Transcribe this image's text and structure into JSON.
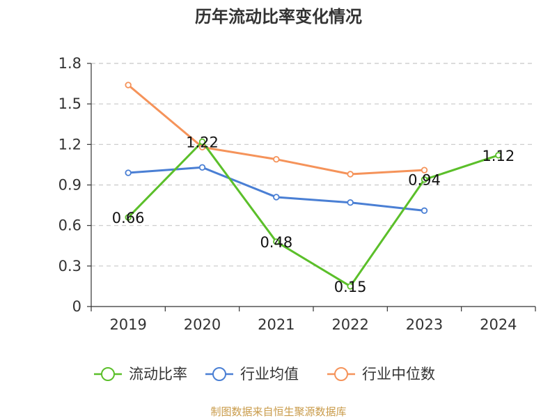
{
  "title": "历年流动比率变化情况",
  "source": "制图数据来自恒生聚源数据库",
  "chart_data": {
    "type": "line",
    "title": "历年流动比率变化情况",
    "xlabel": "",
    "ylabel": "",
    "categories": [
      "2019",
      "2020",
      "2021",
      "2022",
      "2023",
      "2024"
    ],
    "ylim": [
      0,
      1.8
    ],
    "yticks": [
      "0",
      "0.3",
      "0.6",
      "0.9",
      "1.2",
      "1.5",
      "1.8"
    ],
    "grid": true,
    "legend_position": "bottom",
    "series": [
      {
        "name": "流动比率",
        "color": "#5bbf2a",
        "values": [
          0.66,
          1.22,
          0.48,
          0.15,
          0.94,
          1.12
        ],
        "labels": [
          "0.66",
          "1.22",
          "0.48",
          "0.15",
          "0.94",
          "1.12"
        ],
        "show_labels": true
      },
      {
        "name": "行业均值",
        "color": "#4a7fd4",
        "values": [
          0.99,
          1.03,
          0.81,
          0.77,
          0.71,
          null
        ],
        "show_labels": false
      },
      {
        "name": "行业中位数",
        "color": "#f5935a",
        "values": [
          1.64,
          1.18,
          1.09,
          0.98,
          1.01,
          null
        ],
        "show_labels": false
      }
    ]
  }
}
